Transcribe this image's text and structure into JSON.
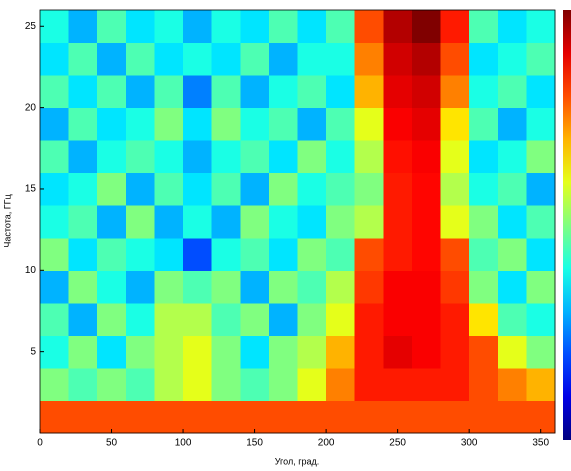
{
  "chart_data": {
    "type": "heatmap",
    "xlabel": "Угол, град.",
    "ylabel": "Частота, ГГц",
    "x": [
      10,
      30,
      50,
      70,
      90,
      110,
      130,
      150,
      170,
      190,
      210,
      230,
      250,
      270,
      290,
      310,
      330,
      350
    ],
    "y": [
      1,
      3,
      5,
      7,
      9,
      11,
      13,
      15,
      17,
      19,
      21,
      23,
      25
    ],
    "values": [
      [
        0.8,
        0.8,
        0.8,
        0.8,
        0.8,
        0.8,
        0.8,
        0.8,
        0.8,
        0.8,
        0.8,
        0.8,
        0.8,
        0.8,
        0.8,
        0.8,
        0.8,
        0.8
      ],
      [
        0.5,
        0.45,
        0.5,
        0.45,
        0.55,
        0.6,
        0.5,
        0.45,
        0.5,
        0.6,
        0.75,
        0.85,
        0.85,
        0.85,
        0.85,
        0.8,
        0.75,
        0.7
      ],
      [
        0.4,
        0.5,
        0.35,
        0.5,
        0.55,
        0.6,
        0.5,
        0.35,
        0.5,
        0.55,
        0.7,
        0.85,
        0.9,
        0.88,
        0.85,
        0.8,
        0.6,
        0.5
      ],
      [
        0.45,
        0.3,
        0.5,
        0.4,
        0.55,
        0.55,
        0.45,
        0.5,
        0.3,
        0.5,
        0.6,
        0.85,
        0.88,
        0.88,
        0.85,
        0.65,
        0.45,
        0.4
      ],
      [
        0.3,
        0.5,
        0.4,
        0.3,
        0.5,
        0.45,
        0.5,
        0.3,
        0.5,
        0.45,
        0.55,
        0.82,
        0.88,
        0.88,
        0.82,
        0.5,
        0.35,
        0.5
      ],
      [
        0.5,
        0.35,
        0.45,
        0.4,
        0.35,
        0.2,
        0.4,
        0.45,
        0.35,
        0.5,
        0.45,
        0.8,
        0.85,
        0.87,
        0.8,
        0.45,
        0.5,
        0.35
      ],
      [
        0.4,
        0.45,
        0.3,
        0.5,
        0.3,
        0.4,
        0.3,
        0.5,
        0.4,
        0.35,
        0.5,
        0.55,
        0.85,
        0.87,
        0.6,
        0.5,
        0.35,
        0.45
      ],
      [
        0.35,
        0.4,
        0.5,
        0.3,
        0.45,
        0.35,
        0.45,
        0.3,
        0.5,
        0.4,
        0.45,
        0.5,
        0.85,
        0.87,
        0.55,
        0.4,
        0.45,
        0.3
      ],
      [
        0.45,
        0.3,
        0.4,
        0.45,
        0.4,
        0.3,
        0.4,
        0.45,
        0.35,
        0.5,
        0.4,
        0.55,
        0.86,
        0.88,
        0.6,
        0.35,
        0.4,
        0.5
      ],
      [
        0.3,
        0.45,
        0.35,
        0.4,
        0.5,
        0.35,
        0.5,
        0.4,
        0.45,
        0.3,
        0.45,
        0.6,
        0.88,
        0.9,
        0.65,
        0.45,
        0.3,
        0.4
      ],
      [
        0.45,
        0.35,
        0.45,
        0.3,
        0.45,
        0.25,
        0.45,
        0.3,
        0.4,
        0.45,
        0.35,
        0.7,
        0.9,
        0.92,
        0.75,
        0.4,
        0.45,
        0.35
      ],
      [
        0.35,
        0.45,
        0.3,
        0.45,
        0.35,
        0.4,
        0.35,
        0.45,
        0.3,
        0.4,
        0.4,
        0.75,
        0.92,
        0.95,
        0.8,
        0.35,
        0.4,
        0.45
      ],
      [
        0.4,
        0.3,
        0.45,
        0.35,
        0.4,
        0.3,
        0.4,
        0.35,
        0.45,
        0.35,
        0.45,
        0.8,
        0.95,
        1.0,
        0.85,
        0.45,
        0.35,
        0.4
      ]
    ],
    "colormap": "jet",
    "zlim": [
      0,
      1
    ],
    "xlim": [
      0,
      360
    ],
    "xticks": [
      0,
      50,
      100,
      150,
      200,
      250,
      300,
      350
    ],
    "ylim": [
      0,
      26
    ],
    "yticks": [
      5,
      10,
      15,
      20,
      25
    ]
  }
}
